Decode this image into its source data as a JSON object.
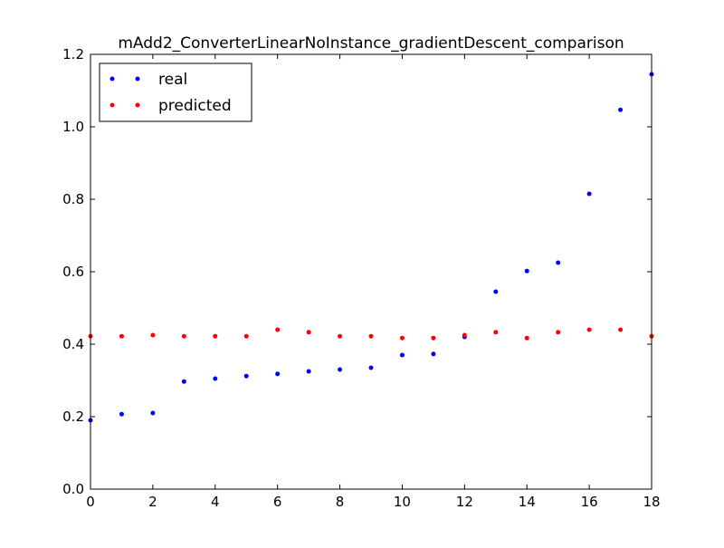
{
  "chart_data": {
    "type": "scatter",
    "title": "mAdd2_ConverterLinearNoInstance_gradientDescent_comparison",
    "xlabel": "",
    "ylabel": "",
    "xlim": [
      0,
      18
    ],
    "ylim": [
      0.0,
      1.2
    ],
    "x_ticks": [
      0,
      2,
      4,
      6,
      8,
      10,
      12,
      14,
      16,
      18
    ],
    "y_ticks": [
      "0.0",
      "0.2",
      "0.4",
      "0.6",
      "0.8",
      "1.0",
      "1.2"
    ],
    "grid": false,
    "legend_position": "top-left",
    "x": [
      0,
      1,
      2,
      3,
      4,
      5,
      6,
      7,
      8,
      9,
      10,
      11,
      12,
      13,
      14,
      15,
      16,
      17,
      18
    ],
    "series": [
      {
        "name": "real",
        "color": "#0000ff",
        "values": [
          0.19,
          0.207,
          0.21,
          0.297,
          0.305,
          0.312,
          0.318,
          0.325,
          0.33,
          0.335,
          0.37,
          0.373,
          0.42,
          0.545,
          0.602,
          0.625,
          0.815,
          1.047,
          1.145
        ]
      },
      {
        "name": "predicted",
        "color": "#ff0000",
        "values": [
          0.422,
          0.422,
          0.425,
          0.422,
          0.422,
          0.422,
          0.44,
          0.433,
          0.422,
          0.422,
          0.417,
          0.417,
          0.425,
          0.433,
          0.417,
          0.433,
          0.44,
          0.44,
          0.422
        ]
      }
    ]
  }
}
